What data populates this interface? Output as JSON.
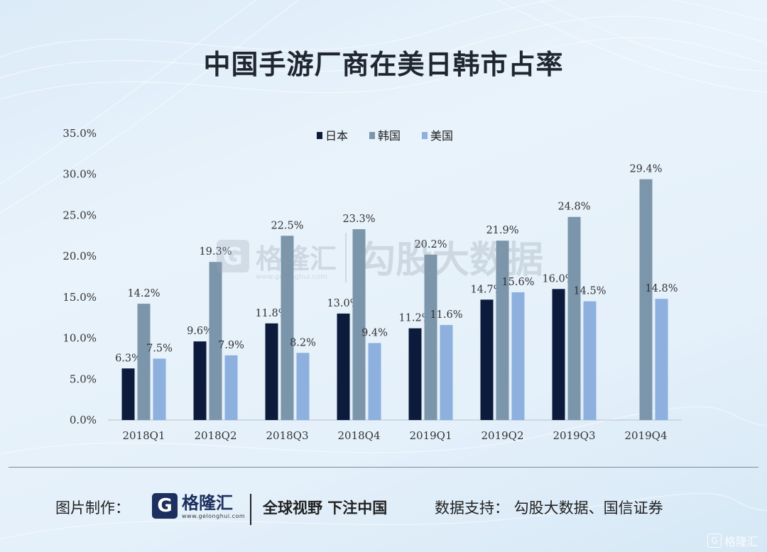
{
  "title": "中国手游厂商在美日韩市占率",
  "chart_data": {
    "type": "bar",
    "categories": [
      "2018Q1",
      "2018Q2",
      "2018Q3",
      "2018Q4",
      "2019Q1",
      "2019Q2",
      "2019Q3",
      "2019Q4"
    ],
    "series": [
      {
        "name": "日本",
        "color": "#0c1a3c",
        "values": [
          6.3,
          9.6,
          11.8,
          13.0,
          11.2,
          14.7,
          16.0,
          null
        ],
        "labels": [
          "6.3%",
          "9.6%",
          "11.8%",
          "13.0%",
          "11.2%",
          "14.7%",
          "16.0%",
          ""
        ]
      },
      {
        "name": "韩国",
        "color": "#7b95ab",
        "values": [
          14.2,
          19.3,
          22.5,
          23.3,
          20.2,
          21.9,
          24.8,
          29.4
        ],
        "labels": [
          "14.2%",
          "19.3%",
          "22.5%",
          "23.3%",
          "20.2%",
          "21.9%",
          "24.8%",
          "29.4%"
        ]
      },
      {
        "name": "美国",
        "color": "#8db0de",
        "values": [
          7.5,
          7.9,
          8.2,
          9.4,
          11.6,
          15.6,
          14.5,
          14.8
        ],
        "labels": [
          "7.5%",
          "7.9%",
          "8.2%",
          "9.4%",
          "11.6%",
          "15.6%",
          "14.5%",
          "14.8%"
        ]
      }
    ],
    "y_ticks": [
      "0.0%",
      "5.0%",
      "10.0%",
      "15.0%",
      "20.0%",
      "25.0%",
      "30.0%",
      "35.0%"
    ],
    "ylim": [
      0,
      35
    ],
    "legend_position": "top",
    "grid": false
  },
  "watermark": {
    "brand": "格隆汇",
    "url": "www.gelonghui.com",
    "text": "勾股大数据"
  },
  "footer": {
    "prefix": "图片制作：",
    "logo_text": "格隆汇",
    "logo_url": "www.gelonghui.com",
    "slogan": "全球视野 下注中国",
    "source": "数据支持：  勾股大数据、国信证券",
    "corner_mark": "格隆汇"
  }
}
